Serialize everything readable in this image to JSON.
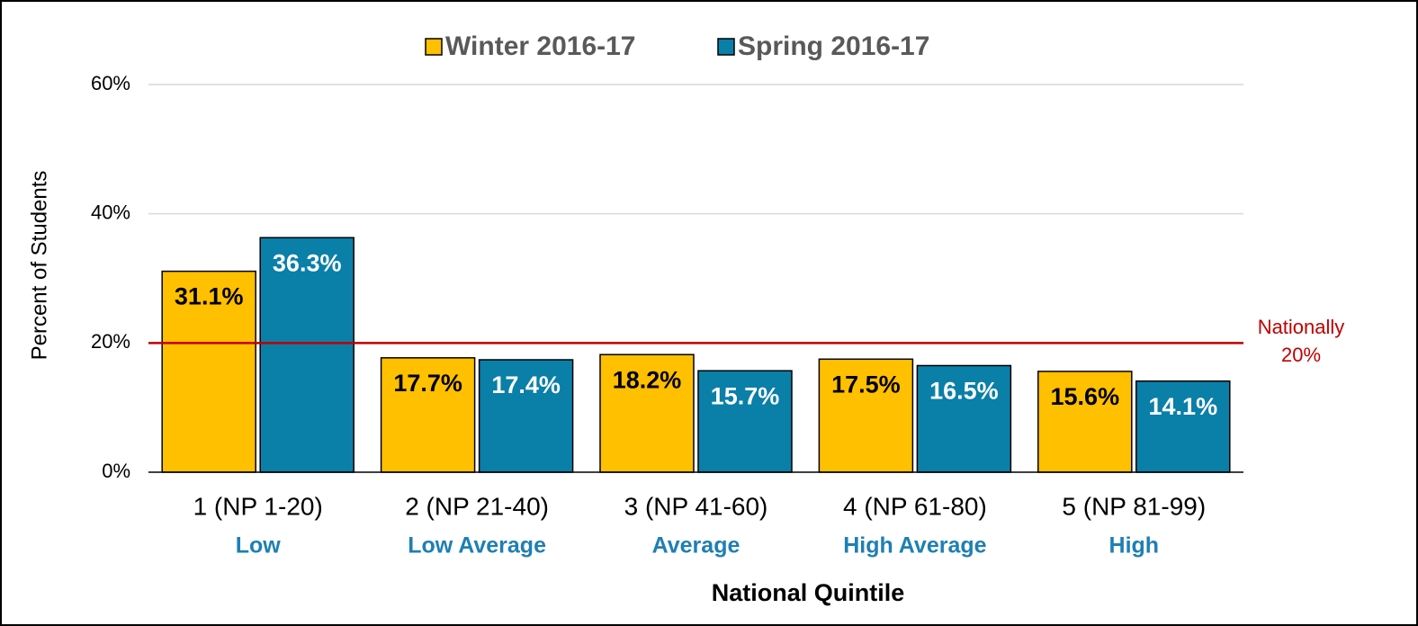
{
  "chart_data": {
    "type": "bar",
    "categories": [
      "1 (NP 1-20)",
      "2 (NP 21-40)",
      "3 (NP 41-60)",
      "4 (NP 61-80)",
      "5 (NP 81-99)"
    ],
    "category_sublabels": [
      "Low",
      "Low Average",
      "Average",
      "High Average",
      "High"
    ],
    "series": [
      {
        "name": "Winter 2016-17",
        "color": "#ffc000",
        "values": [
          31.1,
          17.7,
          18.2,
          17.5,
          15.6
        ],
        "value_labels": [
          "31.1%",
          "17.7%",
          "18.2%",
          "17.5%",
          "15.6%"
        ]
      },
      {
        "name": "Spring 2016-17",
        "color": "#0a7fa8",
        "values": [
          36.3,
          17.4,
          15.7,
          16.5,
          14.1
        ],
        "value_labels": [
          "36.3%",
          "17.4%",
          "15.7%",
          "16.5%",
          "14.1%"
        ]
      }
    ],
    "ylim": [
      0,
      60
    ],
    "yticks": [
      {
        "value": 0,
        "label": "0%"
      },
      {
        "value": 20,
        "label": "20%"
      },
      {
        "value": 40,
        "label": "40%"
      },
      {
        "value": 60,
        "label": "60%"
      }
    ],
    "ylabel": "Percent of Students",
    "xlabel": "National Quintile",
    "reference_line": {
      "value": 20,
      "label": "Nationally",
      "value_label": "20%",
      "color": "#c00000"
    },
    "grid": true,
    "legend": "top"
  }
}
